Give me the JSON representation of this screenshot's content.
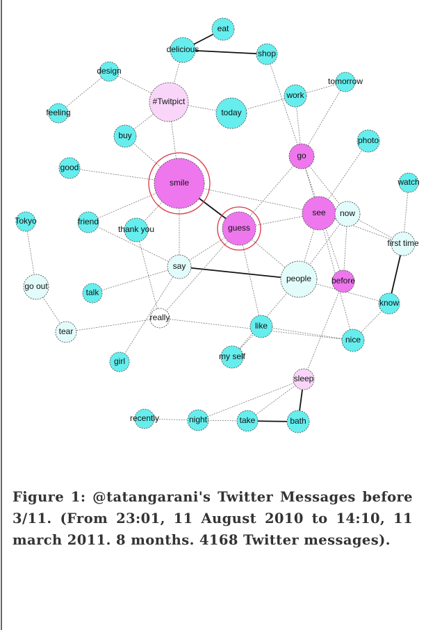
{
  "nodes": [
    {
      "label": "eat"
    },
    {
      "label": "delicious"
    },
    {
      "label": "shop"
    },
    {
      "label": "design"
    },
    {
      "label": "tomorrow"
    },
    {
      "label": "#Twitpict"
    },
    {
      "label": "work"
    },
    {
      "label": "today"
    },
    {
      "label": "feeling"
    },
    {
      "label": "buy"
    },
    {
      "label": "photo"
    },
    {
      "label": "go"
    },
    {
      "label": "good"
    },
    {
      "label": "smile"
    },
    {
      "label": "watch"
    },
    {
      "label": "see"
    },
    {
      "label": "now"
    },
    {
      "label": "Tokyo"
    },
    {
      "label": "friend"
    },
    {
      "label": "guess"
    },
    {
      "label": "thank you"
    },
    {
      "label": "first time"
    },
    {
      "label": "say"
    },
    {
      "label": "go out"
    },
    {
      "label": "people"
    },
    {
      "label": "before"
    },
    {
      "label": "talk"
    },
    {
      "label": "know"
    },
    {
      "label": "really"
    },
    {
      "label": "like"
    },
    {
      "label": "nice"
    },
    {
      "label": "tear"
    },
    {
      "label": "girl"
    },
    {
      "label": "my self"
    },
    {
      "label": "sleep"
    },
    {
      "label": "recently"
    },
    {
      "label": "night"
    },
    {
      "label": "take"
    },
    {
      "label": "bath"
    }
  ],
  "caption": "Figure 1: @tatangarani's Twitter Messages before 3/11. (From 23:01, 11 August 2010 to 14:10, 11 march 2011. 8 months. 4168 Twitter messages)."
}
